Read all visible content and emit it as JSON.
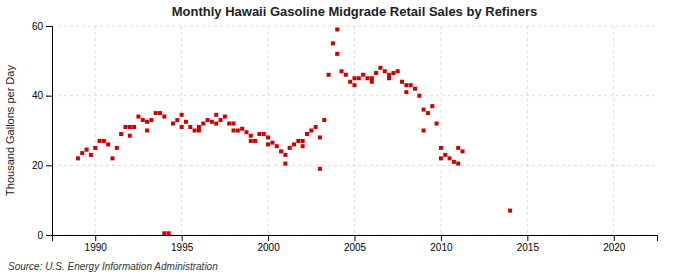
{
  "chart_data": {
    "type": "scatter",
    "title": "Monthly Hawaii Gasoline Midgrade Retail Sales by Refiners",
    "ylabel": "Thousand Gallons per Day",
    "annotations": [
      "Source: U.S. Energy Information Administration"
    ],
    "color": "#cc0000",
    "marker": "square",
    "grid": true,
    "xlim": [
      1987.5,
      2022.5
    ],
    "ylim": [
      0,
      60
    ],
    "xticks": [
      1990,
      1995,
      2000,
      2005,
      2010,
      2015,
      2020
    ],
    "yticks": [
      0,
      20,
      40,
      60
    ],
    "x": [
      1989.0,
      1989.25,
      1989.5,
      1989.75,
      1990.0,
      1990.25,
      1990.5,
      1990.75,
      1991.0,
      1991.25,
      1991.5,
      1991.75,
      1992.0,
      1992.0,
      1992.25,
      1992.5,
      1992.75,
      1993.0,
      1993.0,
      1993.25,
      1993.5,
      1993.75,
      1994.0,
      1994.0,
      1994.25,
      1994.5,
      1994.75,
      1995.0,
      1995.0,
      1995.25,
      1995.5,
      1995.75,
      1996.0,
      1996.0,
      1996.25,
      1996.5,
      1996.75,
      1997.0,
      1997.0,
      1997.25,
      1997.5,
      1997.75,
      1998.0,
      1998.0,
      1998.25,
      1998.5,
      1998.75,
      1999.0,
      1999.0,
      1999.25,
      1999.5,
      1999.75,
      2000.0,
      2000.0,
      2000.25,
      2000.5,
      2000.75,
      2001.0,
      2001.0,
      2001.25,
      2001.5,
      2001.75,
      2002.0,
      2002.0,
      2002.25,
      2002.5,
      2002.75,
      2003.0,
      2003.0,
      2003.25,
      2003.5,
      2003.75,
      2004.0,
      2004.0,
      2004.25,
      2004.5,
      2004.75,
      2005.0,
      2005.0,
      2005.25,
      2005.5,
      2005.75,
      2006.0,
      2006.0,
      2006.25,
      2006.5,
      2006.75,
      2007.0,
      2007.0,
      2007.25,
      2007.5,
      2007.75,
      2008.0,
      2008.0,
      2008.25,
      2008.5,
      2008.75,
      2009.0,
      2009.0,
      2009.25,
      2009.5,
      2009.75,
      2010.0,
      2010.0,
      2010.25,
      2010.5,
      2010.75,
      2011.0,
      2011.0,
      2011.25,
      2014.0
    ],
    "values": [
      22.0,
      23.5,
      24.5,
      23.0,
      25.0,
      27.0,
      27.0,
      26.0,
      22.0,
      25.0,
      29.0,
      31.0,
      31.0,
      28.5,
      31.0,
      34.0,
      33.0,
      32.5,
      30.0,
      33.0,
      35.0,
      35.0,
      34.0,
      0.5,
      0.5,
      32.0,
      33.0,
      34.5,
      31.0,
      32.5,
      31.0,
      30.0,
      30.0,
      31.0,
      32.0,
      33.0,
      32.5,
      34.5,
      32.0,
      33.0,
      34.0,
      32.0,
      32.0,
      30.0,
      30.0,
      30.5,
      29.5,
      28.5,
      27.0,
      27.0,
      29.0,
      29.0,
      28.0,
      26.0,
      26.5,
      25.5,
      24.0,
      20.5,
      23.0,
      25.0,
      26.0,
      27.0,
      25.5,
      27.0,
      29.0,
      30.0,
      31.0,
      19.0,
      28.0,
      33.0,
      46.0,
      55.0,
      59.0,
      52.0,
      47.0,
      46.0,
      44.0,
      45.0,
      43.0,
      45.0,
      46.0,
      45.0,
      44.0,
      45.0,
      46.5,
      48.0,
      47.0,
      46.0,
      45.0,
      46.5,
      47.0,
      44.0,
      43.0,
      41.0,
      43.0,
      42.0,
      40.0,
      36.0,
      30.0,
      35.0,
      37.0,
      32.0,
      25.0,
      22.0,
      23.0,
      22.0,
      21.0,
      20.5,
      25.0,
      24.0,
      7.0
    ]
  }
}
